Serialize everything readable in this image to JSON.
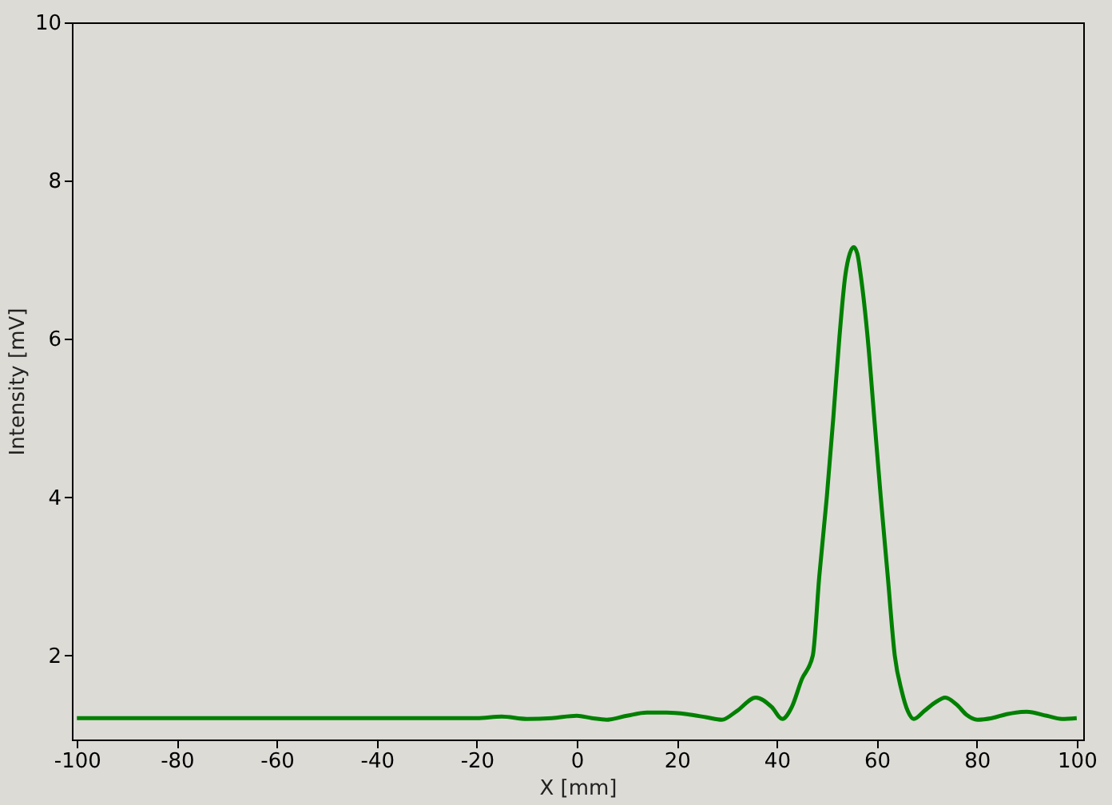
{
  "chart_data": {
    "type": "line",
    "xlabel": "X [mm]",
    "ylabel": "Intensity [mV]",
    "xlim": [
      -101,
      101.3
    ],
    "ylim": [
      0.94,
      10
    ],
    "xticks": [
      -100,
      -80,
      -60,
      -40,
      -20,
      0,
      20,
      40,
      60,
      80,
      100
    ],
    "yticks": [
      2,
      4,
      6,
      8,
      10
    ],
    "grid": false,
    "x": [
      -100,
      -80,
      -60,
      -40,
      -20,
      -15,
      -10,
      -5,
      0,
      3,
      6,
      10,
      14,
      18,
      22,
      26,
      29,
      32,
      35.8,
      39,
      41.1,
      43,
      45,
      47.2,
      48.5,
      50,
      51.3,
      52.5,
      53.7,
      54.6,
      55.4,
      56.1,
      56.8,
      58.2,
      59.5,
      60.8,
      62.2,
      63.6,
      65,
      66.2,
      67.4,
      69.5,
      71.5,
      73.7,
      76,
      78,
      80.1,
      83,
      86,
      90,
      94,
      97,
      100
    ],
    "series": [
      {
        "color": "#008000",
        "values": [
          1.21,
          1.21,
          1.21,
          1.21,
          1.21,
          1.23,
          1.2,
          1.21,
          1.24,
          1.21,
          1.19,
          1.24,
          1.28,
          1.28,
          1.26,
          1.22,
          1.19,
          1.3,
          1.47,
          1.35,
          1.2,
          1.35,
          1.7,
          2,
          3,
          4,
          5,
          6,
          6.8,
          7.08,
          7.16,
          7.08,
          6.8,
          6,
          5,
          4,
          3,
          2,
          1.55,
          1.3,
          1.2,
          1.3,
          1.4,
          1.47,
          1.38,
          1.25,
          1.19,
          1.21,
          1.26,
          1.29,
          1.24,
          1.2,
          1.21
        ]
      }
    ]
  }
}
